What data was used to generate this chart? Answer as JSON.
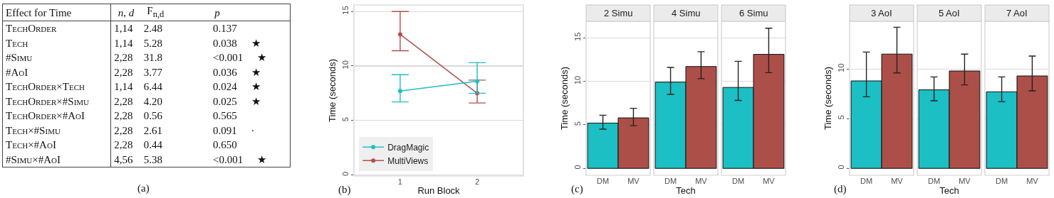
{
  "chart_data": [
    {
      "type": "other",
      "annotations": [
        "Effect for Time",
        "n, d",
        "F$_{n,d}$",
        "p",
        "TechOrder",
        "1,14",
        "2.48",
        "0.137",
        "Tech",
        "1,14",
        "5.28",
        "0.038 ★",
        "#Simu",
        "2,28",
        "31.8",
        "<0.001 ★",
        "#AoI",
        "2,28",
        "3.77",
        "0.036 ★",
        "TechOrder×Tech",
        "1,14",
        "6.44",
        "0.024 ★",
        "TechOrder×#Simu",
        "2,28",
        "4.20",
        "0.025 ★",
        "TechOrder×#AoI",
        "2,28",
        "0.56",
        "0.565",
        "Tech×#Simu",
        "2,28",
        "2.61",
        "0.091 ·",
        "Tech×#AoI",
        "2,28",
        "0.44",
        "0.650",
        "#Simu×#AoI",
        "4,56",
        "5.38",
        "<0.001 ★",
        "(a)"
      ]
    },
    {
      "type": "line",
      "x": [
        1,
        2
      ],
      "xlim": [
        0.4,
        2.6
      ],
      "xticks": [
        1,
        2
      ],
      "ylim": [
        -0.1,
        15.6
      ],
      "yticks": [
        0,
        5,
        10,
        15
      ],
      "xlabel": "Run Block",
      "ylabel": "Time (seconds)",
      "grid": "y",
      "legend": "bottom left",
      "marker": "circle",
      "line_style": "solid",
      "annotations": [
        "(b)"
      ],
      "series": [
        {
          "name": "DragMagic",
          "color": "#1fbfc4",
          "values": [
            7.7,
            8.6
          ],
          "errors": [
            [
              6.7,
              9.2
            ],
            [
              7.5,
              10.3
            ]
          ]
        },
        {
          "name": "MultiViews",
          "color": "#b0514b",
          "values": [
            12.9,
            7.5
          ],
          "errors": [
            [
              11.4,
              15.0
            ],
            [
              6.6,
              8.7
            ]
          ]
        }
      ]
    },
    {
      "type": "bar",
      "title": "2 Simu",
      "categories": [
        "DM",
        "MV"
      ],
      "values": [
        5.2,
        5.8
      ],
      "colors": [
        "#1bbfc4",
        "#ac4f49"
      ],
      "errors": [
        [
          4.5,
          6.1
        ],
        [
          4.9,
          6.9
        ]
      ],
      "ylim": [
        -0.8,
        16.9
      ],
      "yticks": [
        0,
        5,
        10,
        15
      ],
      "ylabel": "Time (seconds)",
      "grid": "y",
      "annotations": [
        "(c)"
      ]
    },
    {
      "type": "bar",
      "title": "4 Simu",
      "categories": [
        "DM",
        "MV"
      ],
      "values": [
        9.9,
        11.7
      ],
      "colors": [
        "#1bbfc4",
        "#ac4f49"
      ],
      "errors": [
        [
          8.5,
          11.6
        ],
        [
          10.3,
          13.4
        ]
      ],
      "ylim": [
        -0.8,
        16.9
      ],
      "yticks": [
        0,
        5,
        10,
        15
      ],
      "xlabel": "Tech",
      "grid": "y",
      "tick_labels": "x"
    },
    {
      "type": "bar",
      "title": "6 Simu",
      "categories": [
        "DM",
        "MV"
      ],
      "values": [
        9.3,
        13.1
      ],
      "colors": [
        "#1bbfc4",
        "#ac4f49"
      ],
      "errors": [
        [
          7.8,
          12.3
        ],
        [
          11.0,
          16.1
        ]
      ],
      "ylim": [
        -0.8,
        16.9
      ],
      "yticks": [
        0,
        5,
        10,
        15
      ],
      "grid": "y",
      "tick_labels": "x"
    },
    {
      "type": "bar",
      "title": "3 AoI",
      "categories": [
        "DM",
        "MV"
      ],
      "values": [
        8.8,
        11.5
      ],
      "colors": [
        "#1bbfc4",
        "#ac4f49"
      ],
      "errors": [
        [
          7.2,
          11.7
        ],
        [
          9.6,
          14.2
        ]
      ],
      "ylim": [
        -0.7,
        14.8
      ],
      "yticks": [
        0,
        5,
        10
      ],
      "ylabel": "Time (seconds)",
      "grid": "y",
      "annotations": [
        "(d)"
      ]
    },
    {
      "type": "bar",
      "title": "5 AoI",
      "categories": [
        "DM",
        "MV"
      ],
      "values": [
        7.9,
        9.8
      ],
      "colors": [
        "#1bbfc4",
        "#ac4f49"
      ],
      "errors": [
        [
          6.8,
          9.2
        ],
        [
          8.4,
          11.5
        ]
      ],
      "ylim": [
        -0.7,
        14.8
      ],
      "yticks": [
        0,
        5,
        10
      ],
      "xlabel": "Tech",
      "grid": "y",
      "tick_labels": "x"
    },
    {
      "type": "bar",
      "title": "7 AoI",
      "categories": [
        "DM",
        "MV"
      ],
      "values": [
        7.7,
        9.3
      ],
      "colors": [
        "#1bbfc4",
        "#ac4f49"
      ],
      "errors": [
        [
          6.7,
          9.2
        ],
        [
          7.8,
          11.3
        ]
      ],
      "ylim": [
        -0.7,
        14.8
      ],
      "yticks": [
        0,
        5,
        10
      ],
      "grid": "y",
      "tick_labels": "x"
    }
  ]
}
